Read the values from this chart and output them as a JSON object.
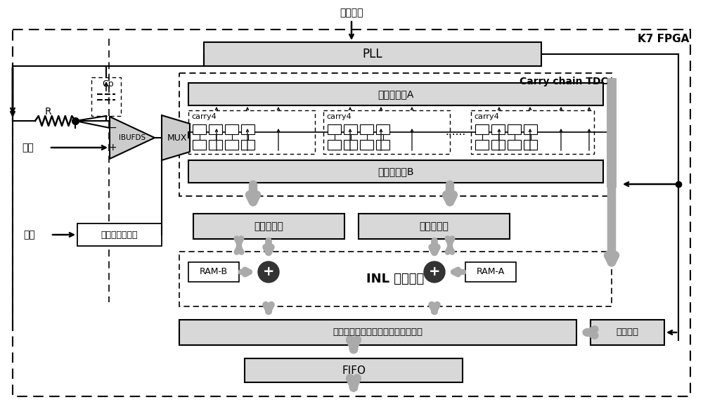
{
  "title": "K7 FPGA",
  "bg_color": "#ffffff",
  "sys_clock_label": "系统时钟",
  "pll_label": "PLL",
  "carry_tdc_label": "Carry chain TDC",
  "ff_array_a_label": "触发器阵列A",
  "ff_array_b_label": "触发器阵列B",
  "carry4_label": "carry4",
  "leading_encoder_label": "前沿编码器",
  "trailing_encoder_label": "后沿编码器",
  "inl_label": "INL 修正逻辑",
  "ram_b_label": "RAM-B",
  "ram_a_label": "RAM-A",
  "time_pack_label": "时间信息打包与缓存、脉冲宽度计算",
  "fifo_label": "FIFO",
  "coarse_counter_label": "粗计数器",
  "ibufds_label": "IBUFDS",
  "mux_label": "MUX",
  "input_label": "输入",
  "crystal_label": "晶振",
  "calib_label": "标定信号发生器",
  "cp_label": "Cp",
  "r_label": "R",
  "gray_arrow": "#aaaaaa",
  "dark_gray": "#888888",
  "box_gray": "#d8d8d8",
  "box_light": "#ebebeb",
  "white": "#ffffff",
  "black": "#000000"
}
